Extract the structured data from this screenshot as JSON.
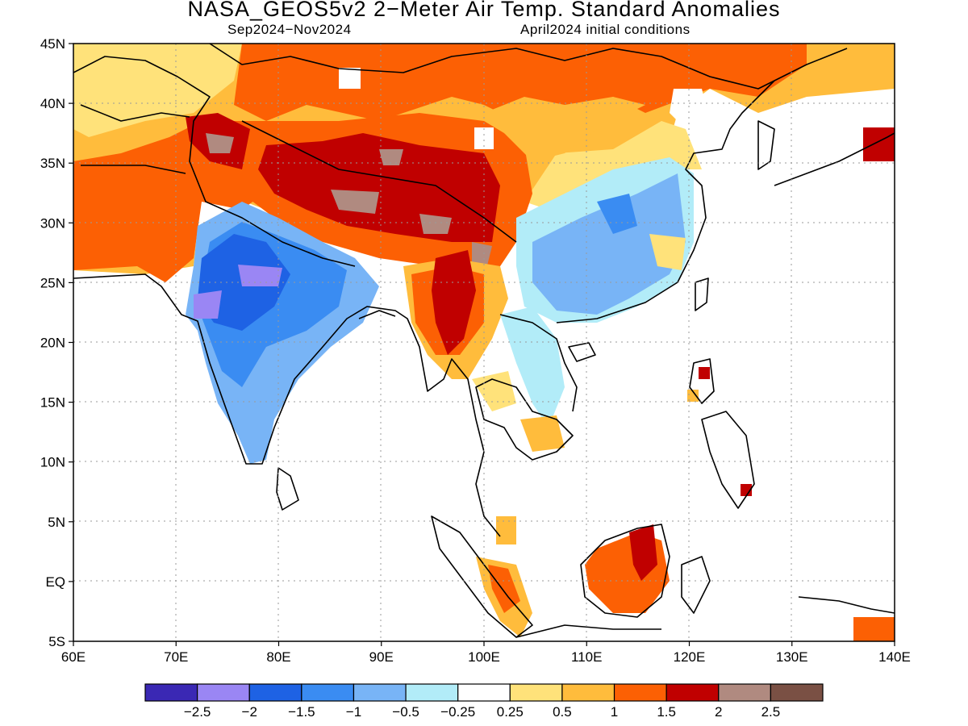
{
  "title": "NASA_GEOS5v2 2−Meter Air Temp. Standard Anomalies",
  "period": "Sep2024−Nov2024",
  "initial_conditions": "April2024 initial conditions",
  "map": {
    "lon_range": [
      60,
      140
    ],
    "lat_range": [
      -5,
      45
    ],
    "lat_ticks": [
      {
        "value": 45,
        "label": "45N"
      },
      {
        "value": 40,
        "label": "40N"
      },
      {
        "value": 35,
        "label": "35N"
      },
      {
        "value": 30,
        "label": "30N"
      },
      {
        "value": 25,
        "label": "25N"
      },
      {
        "value": 20,
        "label": "20N"
      },
      {
        "value": 15,
        "label": "15N"
      },
      {
        "value": 10,
        "label": "10N"
      },
      {
        "value": 5,
        "label": "5N"
      },
      {
        "value": 0,
        "label": "EQ"
      },
      {
        "value": -5,
        "label": "5S"
      }
    ],
    "lon_ticks": [
      {
        "value": 60,
        "label": "60E"
      },
      {
        "value": 70,
        "label": "70E"
      },
      {
        "value": 80,
        "label": "80E"
      },
      {
        "value": 90,
        "label": "90E"
      },
      {
        "value": 100,
        "label": "100E"
      },
      {
        "value": 110,
        "label": "110E"
      },
      {
        "value": 120,
        "label": "120E"
      },
      {
        "value": 130,
        "label": "130E"
      },
      {
        "value": 140,
        "label": "140E"
      }
    ],
    "grid": "dotted at 10° lon / 5° lat"
  },
  "colorbar": {
    "colors": [
      "#3a28b4",
      "#9a86f4",
      "#1e62e4",
      "#3a8cf2",
      "#78b4f6",
      "#b2ecf8",
      "#ffffff",
      "#ffe27a",
      "#ffbc3c",
      "#fc6004",
      "#c00000",
      "#b08a80",
      "#7a5044"
    ],
    "labels": [
      "−2.5",
      "−2",
      "−1.5",
      "−1",
      "−0.5",
      "−0.25",
      "0.25",
      "0.5",
      "1",
      "1.5",
      "2",
      "2.5"
    ]
  },
  "anomaly_regions": [
    {
      "region": "Mongolia / North China",
      "class": "0.5 to 1.5"
    },
    {
      "region": "Tibetan Plateau",
      "class": "1.5 to 2.5"
    },
    {
      "region": "Central and East India",
      "class": "−1.5 to −2.5"
    },
    {
      "region": "Southeast China",
      "class": "−0.5 to −1.5"
    },
    {
      "region": "Myanmar / Yunnan",
      "class": "1 to 2.5"
    },
    {
      "region": "Borneo",
      "class": "1 to 2"
    }
  ]
}
